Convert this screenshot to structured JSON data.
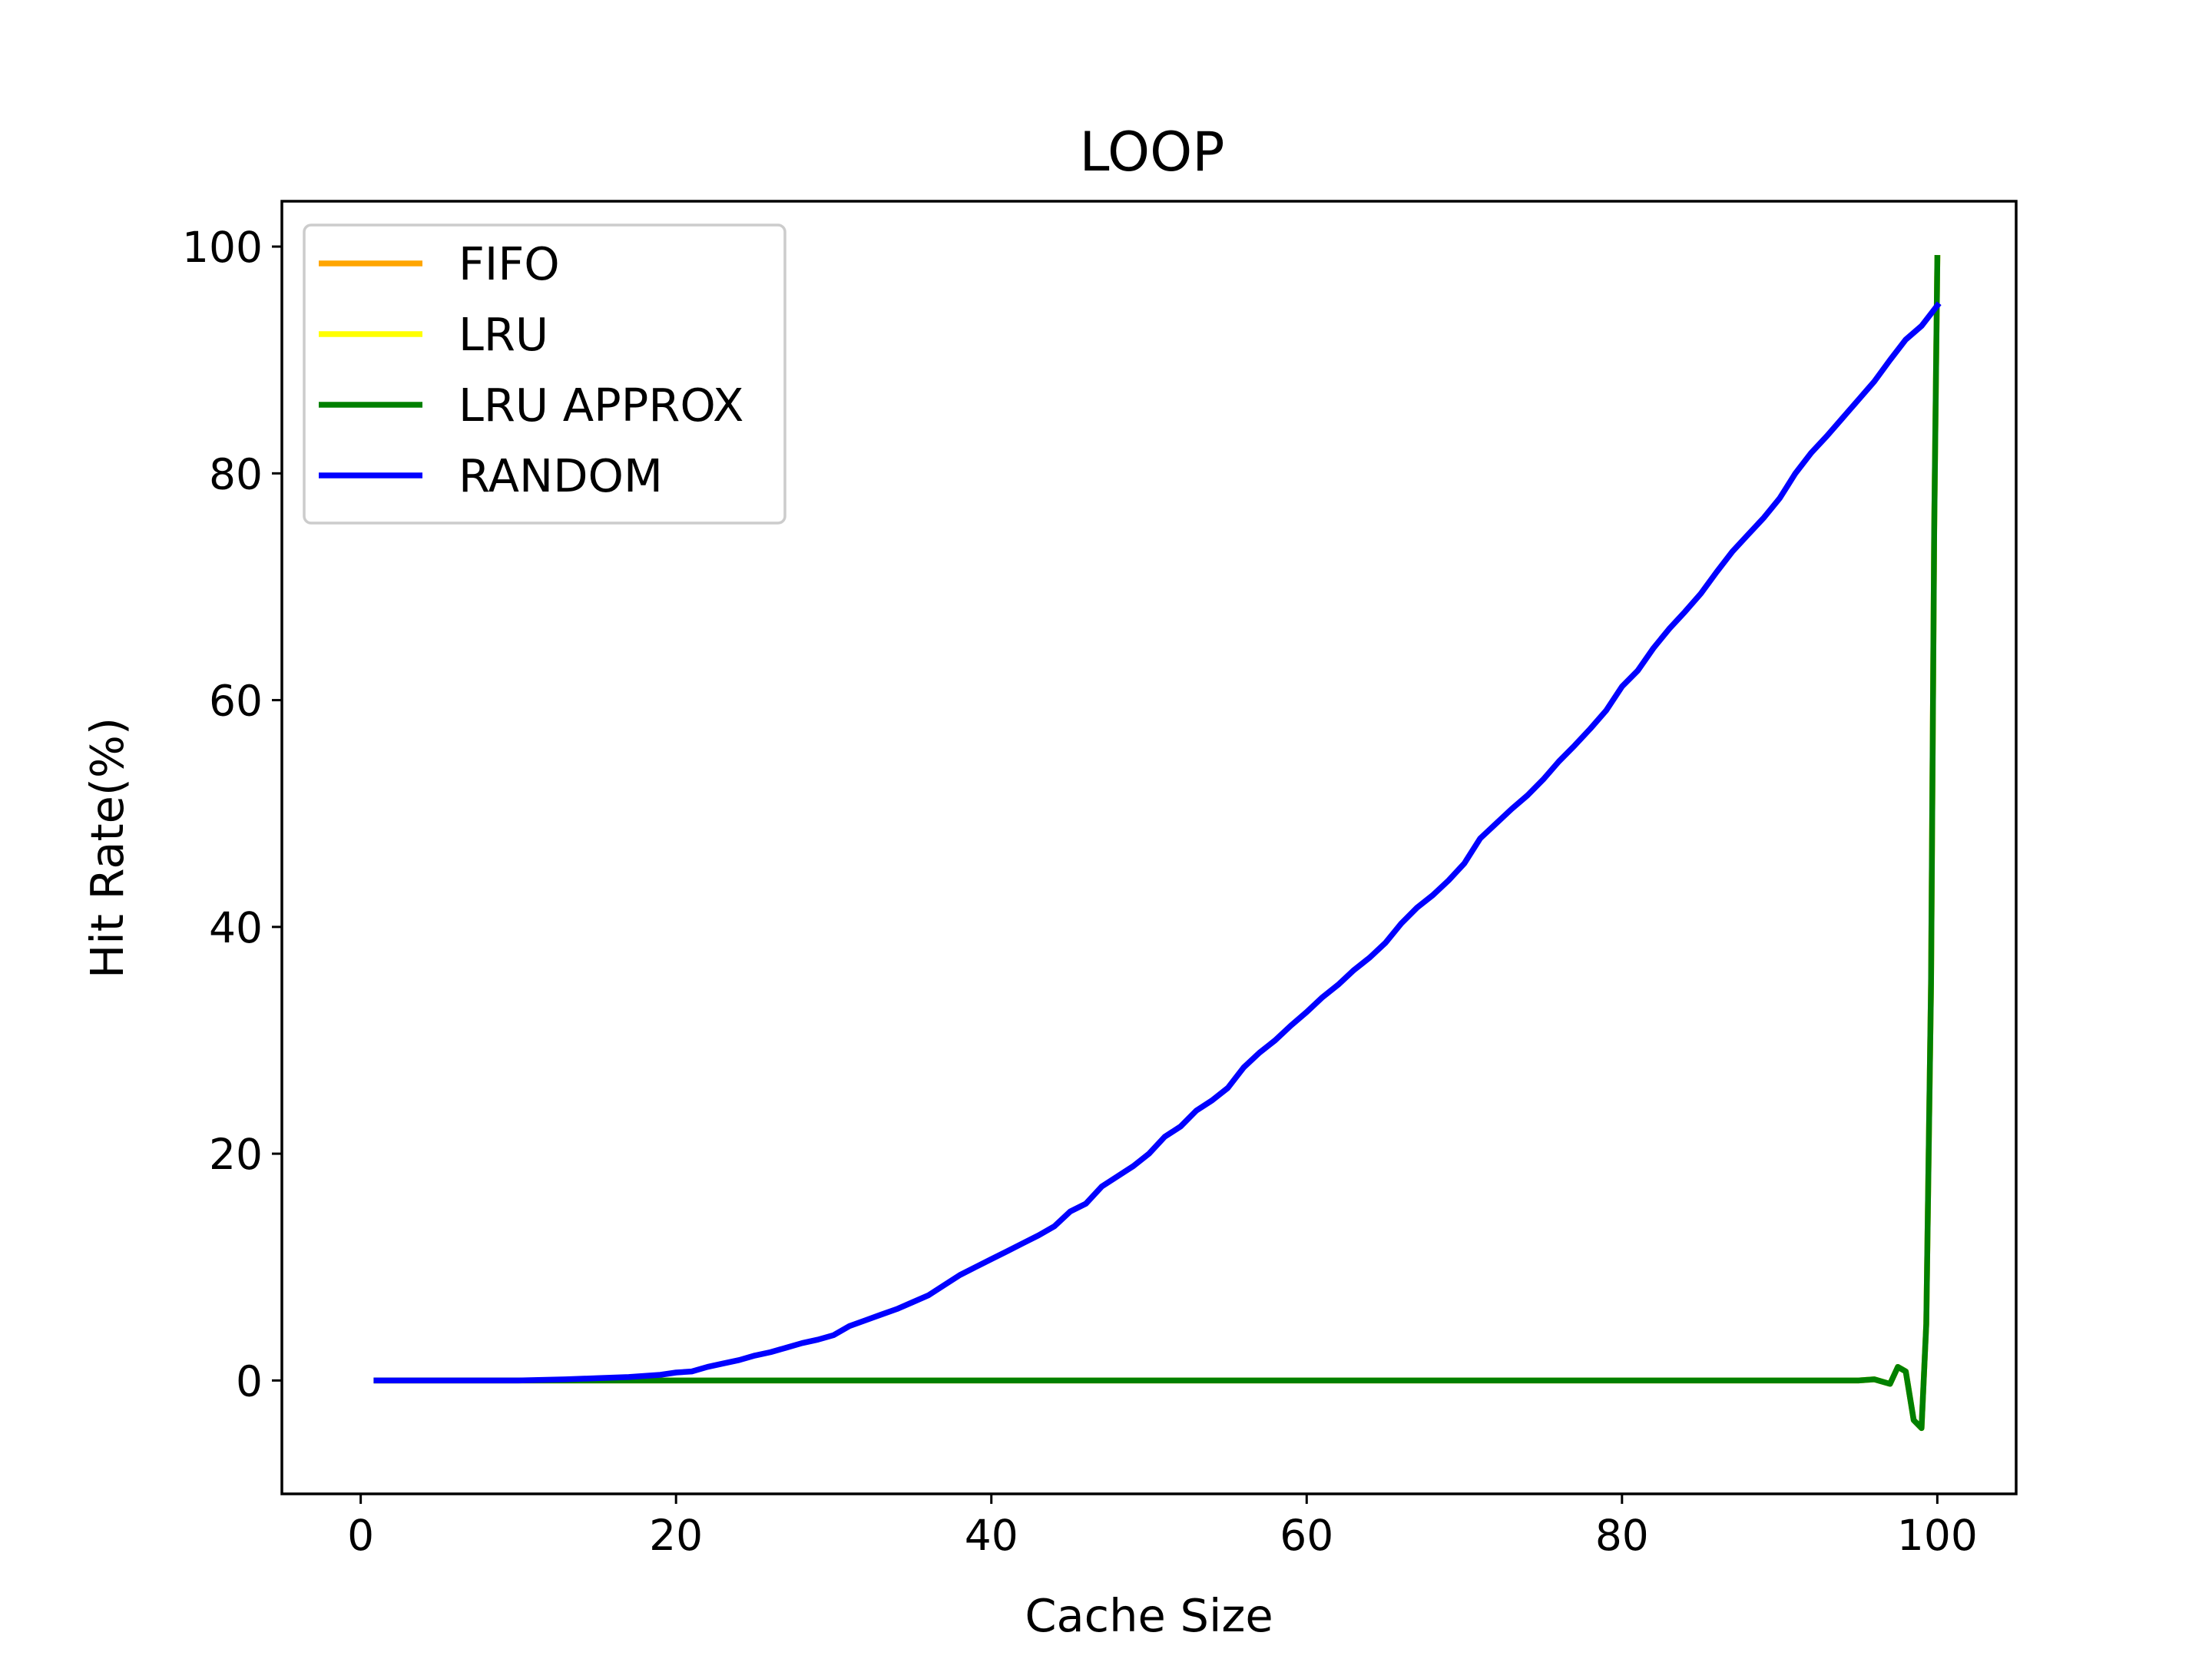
{
  "chart_data": {
    "type": "line",
    "title": "LOOP",
    "xlabel": "Cache Size",
    "ylabel": "Hit Rate(%)",
    "xlim": [
      -5,
      105
    ],
    "ylim": [
      -10,
      104
    ],
    "x_ticks": [
      0,
      20,
      40,
      60,
      80,
      100
    ],
    "y_ticks": [
      0,
      20,
      40,
      60,
      80,
      100
    ],
    "grid": false,
    "legend_position": "top-left",
    "series": [
      {
        "name": "FIFO",
        "color": "#ffa500",
        "x": [
          1,
          10,
          20,
          30,
          40,
          50,
          60,
          70,
          80,
          90,
          95,
          96,
          97,
          97.5,
          98,
          98.5,
          99,
          99.3,
          99.6,
          99.8,
          100
        ],
        "y": [
          0,
          0,
          0,
          0,
          0,
          0,
          0,
          0,
          0,
          0,
          0,
          0.1,
          -0.3,
          1.2,
          0.8,
          -3.5,
          -4.2,
          5,
          35,
          75,
          99
        ]
      },
      {
        "name": "LRU",
        "color": "#ffff00",
        "x": [
          1,
          10,
          20,
          30,
          40,
          50,
          60,
          70,
          80,
          90,
          95,
          96,
          97,
          97.5,
          98,
          98.5,
          99,
          99.3,
          99.6,
          99.8,
          100
        ],
        "y": [
          0,
          0,
          0,
          0,
          0,
          0,
          0,
          0,
          0,
          0,
          0,
          0.1,
          -0.3,
          1.2,
          0.8,
          -3.5,
          -4.2,
          5,
          35,
          75,
          99
        ]
      },
      {
        "name": "LRU APPROX",
        "color": "#008000",
        "x": [
          1,
          10,
          20,
          30,
          40,
          50,
          60,
          70,
          80,
          90,
          95,
          96,
          97,
          97.5,
          98,
          98.5,
          99,
          99.3,
          99.6,
          99.8,
          100
        ],
        "y": [
          0,
          0,
          0,
          0,
          0,
          0,
          0,
          0,
          0,
          0,
          0,
          0.1,
          -0.3,
          1.2,
          0.8,
          -3.5,
          -4.2,
          5,
          35,
          75,
          99
        ]
      },
      {
        "name": "RANDOM",
        "color": "#0000ff",
        "x": [
          1,
          5,
          10,
          13,
          15,
          17,
          19,
          20,
          21,
          22,
          23,
          24,
          25,
          26,
          27,
          28,
          29,
          30,
          31,
          32,
          33,
          34,
          35,
          36,
          37,
          38,
          39,
          40,
          41,
          42,
          43,
          44,
          45,
          46,
          47,
          48,
          49,
          50,
          51,
          52,
          53,
          54,
          55,
          56,
          57,
          58,
          59,
          60,
          61,
          62,
          63,
          64,
          65,
          66,
          67,
          68,
          69,
          70,
          71,
          72,
          73,
          74,
          75,
          76,
          77,
          78,
          79,
          80,
          81,
          82,
          83,
          84,
          85,
          86,
          87,
          88,
          89,
          90,
          91,
          92,
          93,
          94,
          95,
          96,
          97,
          98,
          99,
          100
        ],
        "y": [
          0,
          0,
          0,
          0.1,
          0.2,
          0.3,
          0.5,
          0.7,
          0.8,
          1.2,
          1.5,
          1.8,
          2.2,
          2.5,
          2.9,
          3.3,
          3.6,
          4.0,
          4.8,
          5.3,
          5.8,
          6.3,
          6.9,
          7.5,
          8.4,
          9.3,
          10.0,
          10.7,
          11.4,
          12.1,
          12.8,
          13.6,
          14.9,
          15.6,
          17.1,
          18.0,
          18.9,
          20.0,
          21.5,
          22.4,
          23.8,
          24.7,
          25.8,
          27.6,
          28.9,
          30.0,
          31.3,
          32.5,
          33.8,
          34.9,
          36.2,
          37.3,
          38.6,
          40.3,
          41.7,
          42.8,
          44.1,
          45.6,
          47.8,
          49.1,
          50.4,
          51.6,
          53.0,
          54.6,
          56.0,
          57.5,
          59.1,
          61.2,
          62.6,
          64.6,
          66.3,
          67.8,
          69.4,
          71.3,
          73.1,
          74.6,
          76.1,
          77.8,
          80.0,
          81.8,
          83.3,
          84.9,
          86.5,
          88.1,
          90.0,
          91.8,
          93.0,
          94.8
        ]
      }
    ]
  }
}
